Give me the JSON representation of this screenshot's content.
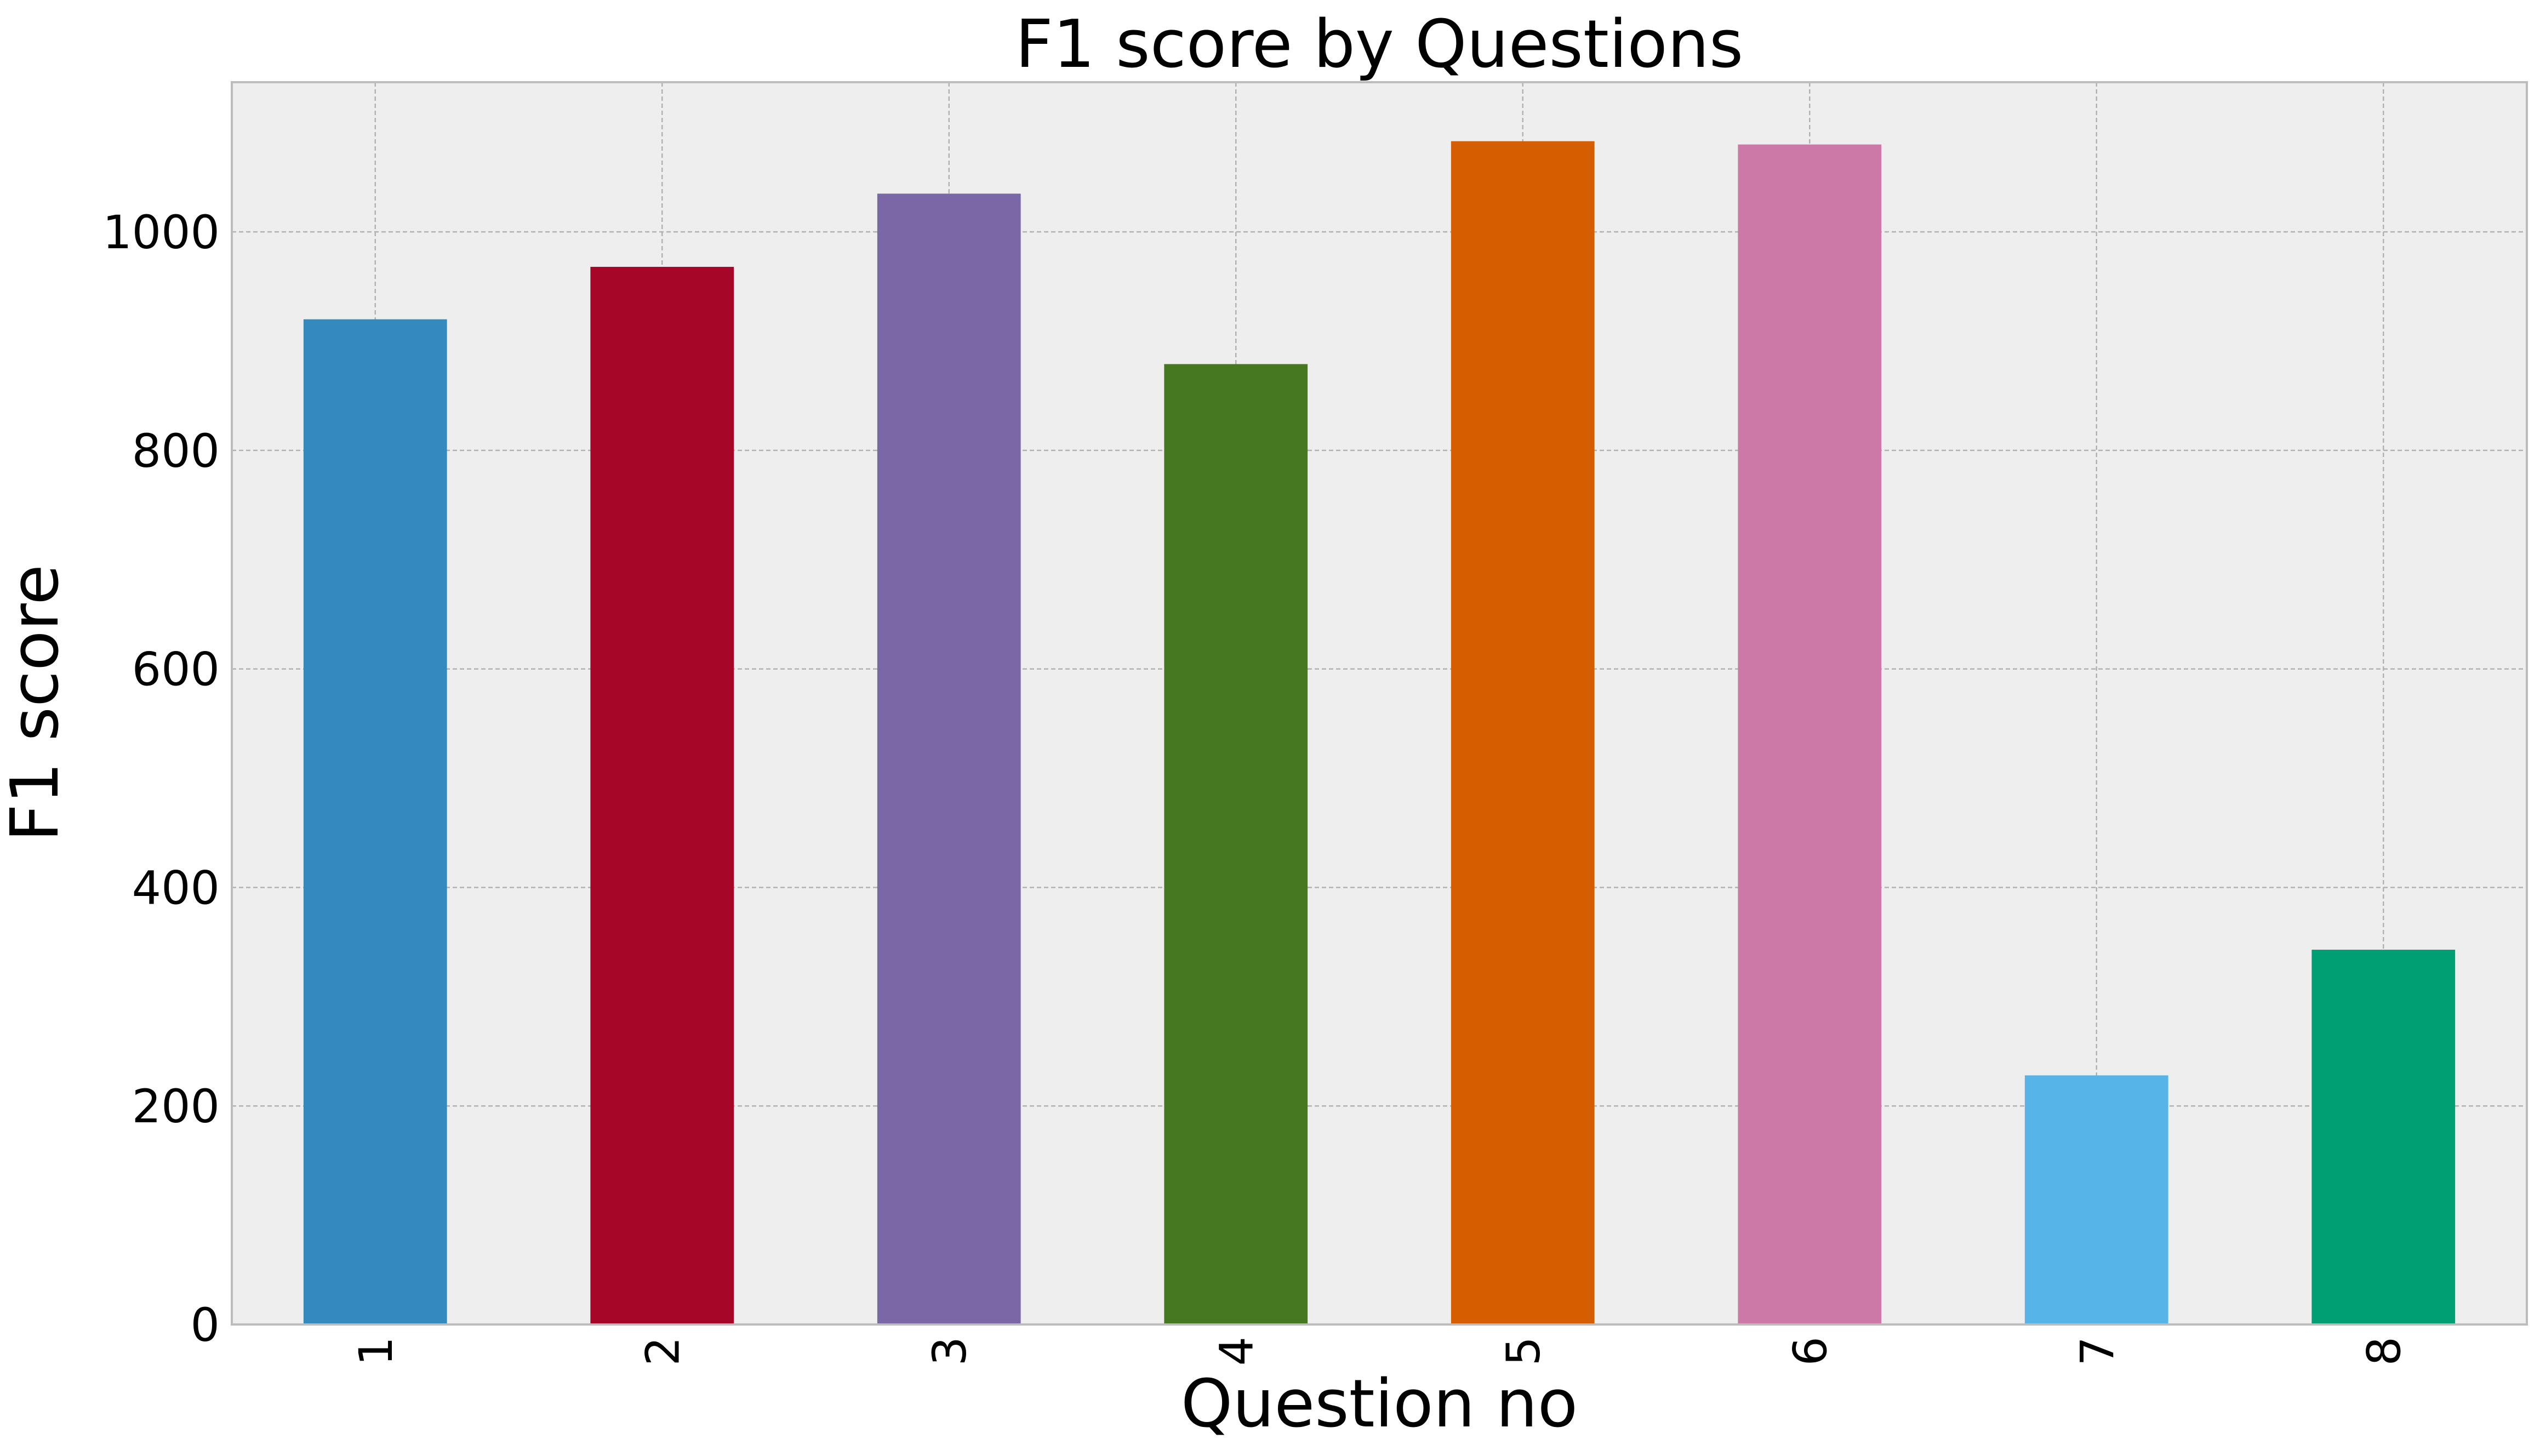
{
  "chart_data": {
    "type": "bar",
    "title": "F1 score by Questions",
    "xlabel": "Question no",
    "ylabel": "F1 score",
    "categories": [
      "1",
      "2",
      "3",
      "4",
      "5",
      "6",
      "7",
      "8"
    ],
    "values": [
      920,
      968,
      1035,
      879,
      1083,
      1080,
      228,
      343
    ],
    "colors": [
      "#348ABD",
      "#A60628",
      "#7A68A6",
      "#467821",
      "#D55E00",
      "#CC79A7",
      "#56B4E9",
      "#009E73"
    ],
    "ylim": [
      0,
      1137
    ],
    "yticks": [
      "0",
      "200",
      "400",
      "600",
      "800",
      "1000"
    ],
    "grid": true,
    "plot_background": "#EEEEEE",
    "grid_color": "#B2B2B2",
    "tick_rotation": "vertical"
  }
}
